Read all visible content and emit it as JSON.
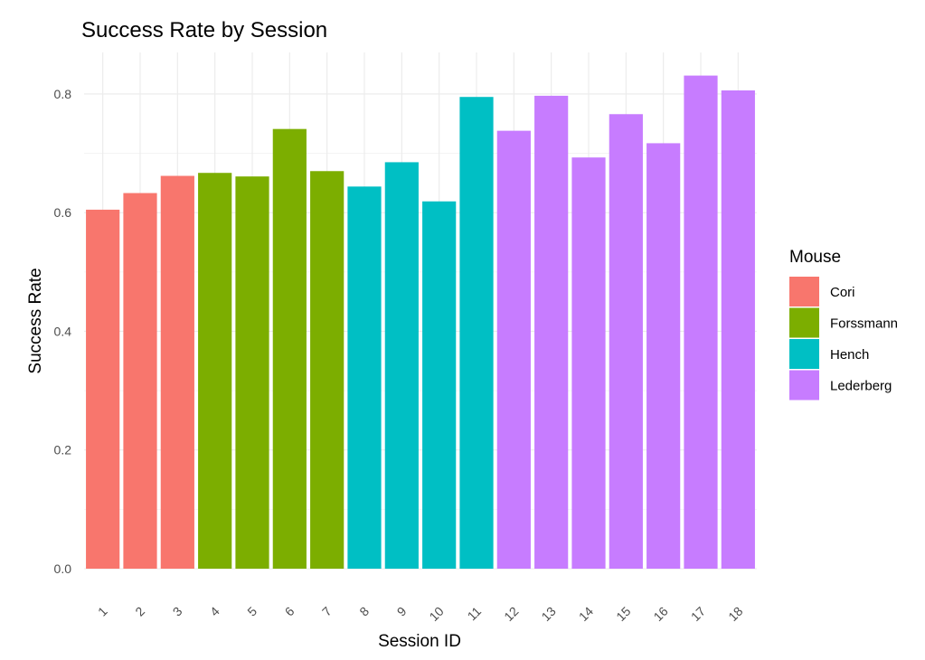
{
  "chart_data": {
    "type": "bar",
    "title": "Success Rate by Session",
    "xlabel": "Session ID",
    "ylabel": "Success Rate",
    "ylim": [
      0,
      0.87
    ],
    "yticks": [
      0.0,
      0.2,
      0.4,
      0.6,
      0.8
    ],
    "ytick_labels": [
      "0.0",
      "0.2",
      "0.4",
      "0.6",
      "0.8"
    ],
    "grid": true,
    "legend": {
      "title": "Mouse",
      "position": "right",
      "entries": [
        {
          "name": "Cori",
          "color": "#F8766D"
        },
        {
          "name": "Forssmann",
          "color": "#7CAE00"
        },
        {
          "name": "Hench",
          "color": "#00BFC4"
        },
        {
          "name": "Lederberg",
          "color": "#C77CFF"
        }
      ]
    },
    "categories": [
      "1",
      "2",
      "3",
      "4",
      "5",
      "6",
      "7",
      "8",
      "9",
      "10",
      "11",
      "12",
      "13",
      "14",
      "15",
      "16",
      "17",
      "18"
    ],
    "values": [
      0.605,
      0.633,
      0.662,
      0.667,
      0.661,
      0.741,
      0.67,
      0.644,
      0.685,
      0.619,
      0.795,
      0.738,
      0.797,
      0.693,
      0.766,
      0.717,
      0.831,
      0.806
    ],
    "groups": [
      "Cori",
      "Cori",
      "Cori",
      "Forssmann",
      "Forssmann",
      "Forssmann",
      "Forssmann",
      "Hench",
      "Hench",
      "Hench",
      "Hench",
      "Lederberg",
      "Lederberg",
      "Lederberg",
      "Lederberg",
      "Lederberg",
      "Lederberg",
      "Lederberg"
    ]
  }
}
